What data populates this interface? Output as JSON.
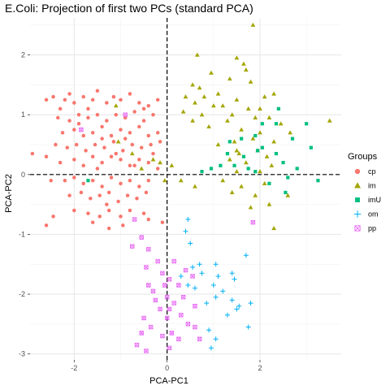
{
  "chart_data": {
    "type": "scatter",
    "title": "E.Coli: Projection of first two PCs (standard PCA)",
    "xlabel": "PCA-PC1",
    "ylabel": "PCA-PC2",
    "xlim": [
      -2.95,
      3.75
    ],
    "ylim": [
      -3.1,
      2.62
    ],
    "x_ticks": [
      -2,
      0,
      2
    ],
    "y_ticks": [
      -3,
      -2,
      -1,
      0,
      1,
      2
    ],
    "grid": true,
    "reference_lines": [
      {
        "axis": "x",
        "value": 0,
        "style": "dashed"
      },
      {
        "axis": "y",
        "value": 0,
        "style": "dashed"
      }
    ],
    "legend": {
      "title": "Groups",
      "position": "right"
    },
    "series": [
      {
        "name": "cp",
        "color": "#F8766D",
        "shape": "circle",
        "points": [
          [
            -2.6,
            1.25
          ],
          [
            -2.45,
            1.3
          ],
          [
            -2.3,
            1.1
          ],
          [
            -2.2,
            1.25
          ],
          [
            -2.1,
            1.35
          ],
          [
            -2.0,
            1.2
          ],
          [
            -1.8,
            1.3
          ],
          [
            -1.6,
            1.25
          ],
          [
            -1.5,
            1.4
          ],
          [
            -1.3,
            1.2
          ],
          [
            -1.15,
            1.3
          ],
          [
            -1.0,
            1.25
          ],
          [
            -0.8,
            1.35
          ],
          [
            -0.6,
            1.2
          ],
          [
            -0.4,
            1.15
          ],
          [
            -0.2,
            1.25
          ],
          [
            -2.35,
            0.95
          ],
          [
            -2.1,
            0.9
          ],
          [
            -1.9,
            1.0
          ],
          [
            -1.7,
            0.95
          ],
          [
            -1.5,
            1.0
          ],
          [
            -1.3,
            0.9
          ],
          [
            -1.1,
            1.0
          ],
          [
            -0.9,
            0.95
          ],
          [
            -0.7,
            1.05
          ],
          [
            -0.5,
            0.9
          ],
          [
            -0.3,
            1.0
          ],
          [
            -2.25,
            0.7
          ],
          [
            -2.0,
            0.75
          ],
          [
            -1.8,
            0.65
          ],
          [
            -1.6,
            0.7
          ],
          [
            -1.4,
            0.8
          ],
          [
            -1.2,
            0.65
          ],
          [
            -1.0,
            0.75
          ],
          [
            -0.8,
            0.7
          ],
          [
            -0.6,
            0.8
          ],
          [
            -0.4,
            0.65
          ],
          [
            -0.2,
            0.7
          ],
          [
            -2.15,
            0.45
          ],
          [
            -1.95,
            0.5
          ],
          [
            -1.75,
            0.4
          ],
          [
            -1.55,
            0.5
          ],
          [
            -1.35,
            0.45
          ],
          [
            -1.15,
            0.55
          ],
          [
            -0.95,
            0.4
          ],
          [
            -0.75,
            0.5
          ],
          [
            -0.55,
            0.45
          ],
          [
            -0.35,
            0.5
          ],
          [
            -0.15,
            0.55
          ],
          [
            -2.9,
            0.35
          ],
          [
            -2.6,
            0.3
          ],
          [
            -2.3,
            0.2
          ],
          [
            -2.0,
            0.25
          ],
          [
            -1.8,
            0.15
          ],
          [
            -1.6,
            0.3
          ],
          [
            -1.4,
            0.2
          ],
          [
            -1.2,
            0.3
          ],
          [
            -1.0,
            0.25
          ],
          [
            -0.8,
            0.15
          ],
          [
            -0.6,
            0.25
          ],
          [
            -0.4,
            0.2
          ],
          [
            -0.2,
            0.1
          ],
          [
            -2.2,
            -0.1
          ],
          [
            -2.0,
            -0.05
          ],
          [
            -1.8,
            -0.15
          ],
          [
            -1.6,
            -0.1
          ],
          [
            -1.4,
            -0.2
          ],
          [
            -1.2,
            -0.05
          ],
          [
            -1.0,
            -0.15
          ],
          [
            -0.8,
            -0.1
          ],
          [
            -0.6,
            -0.2
          ],
          [
            -0.4,
            -0.1
          ],
          [
            -2.1,
            -0.35
          ],
          [
            -1.85,
            -0.3
          ],
          [
            -1.65,
            -0.4
          ],
          [
            -1.45,
            -0.35
          ],
          [
            -1.25,
            -0.3
          ],
          [
            -1.05,
            -0.45
          ],
          [
            -0.85,
            -0.35
          ],
          [
            -0.65,
            -0.4
          ],
          [
            -0.45,
            -0.3
          ],
          [
            -2.0,
            -0.6
          ],
          [
            -1.7,
            -0.65
          ],
          [
            -1.45,
            -0.7
          ],
          [
            -1.25,
            -0.6
          ],
          [
            -1.0,
            -0.7
          ],
          [
            -0.8,
            -0.6
          ],
          [
            -0.5,
            -0.65
          ],
          [
            -2.45,
            -0.7
          ],
          [
            -2.6,
            -0.85
          ],
          [
            -1.6,
            -0.8
          ],
          [
            -1.25,
            -0.9
          ],
          [
            -0.95,
            -0.85
          ],
          [
            -0.4,
            -0.75
          ],
          [
            -0.1,
            -0.8
          ],
          [
            -1.4,
            0.6
          ],
          [
            -1.1,
            0.35
          ],
          [
            -0.7,
            0.15
          ],
          [
            -0.3,
            0.35
          ],
          [
            -1.9,
            0.85
          ],
          [
            -1.7,
            1.1
          ],
          [
            -0.5,
            1.1
          ],
          [
            -1.3,
            -0.5
          ],
          [
            -1.5,
            0.1
          ],
          [
            -0.9,
            0.6
          ],
          [
            -2.4,
            0.5
          ],
          [
            -2.5,
            -0.1
          ]
        ]
      },
      {
        "name": "im",
        "color": "#A3A500",
        "shape": "triangle",
        "points": [
          [
            1.85,
            2.5
          ],
          [
            0.65,
            2.0
          ],
          [
            1.5,
            1.95
          ],
          [
            1.65,
            1.85
          ],
          [
            1.7,
            1.75
          ],
          [
            0.95,
            1.7
          ],
          [
            1.35,
            1.6
          ],
          [
            1.8,
            1.55
          ],
          [
            0.55,
            1.5
          ],
          [
            0.7,
            1.45
          ],
          [
            1.1,
            1.35
          ],
          [
            2.1,
            1.3
          ],
          [
            0.8,
            1.3
          ],
          [
            1.5,
            1.25
          ],
          [
            2.3,
            1.35
          ],
          [
            0.4,
            1.3
          ],
          [
            0.6,
            1.2
          ],
          [
            1.0,
            1.15
          ],
          [
            1.2,
            1.15
          ],
          [
            1.75,
            1.1
          ],
          [
            2.0,
            1.1
          ],
          [
            0.35,
            1.05
          ],
          [
            0.75,
            1.0
          ],
          [
            1.4,
            1.0
          ],
          [
            1.9,
            0.95
          ],
          [
            2.2,
            0.95
          ],
          [
            0.55,
            0.9
          ],
          [
            1.3,
            0.9
          ],
          [
            2.45,
            0.85
          ],
          [
            0.9,
            0.8
          ],
          [
            1.6,
            0.75
          ],
          [
            2.0,
            0.7
          ],
          [
            2.65,
            0.7
          ],
          [
            3.5,
            0.9
          ],
          [
            1.85,
            0.6
          ],
          [
            1.45,
            0.55
          ],
          [
            2.3,
            0.55
          ],
          [
            1.1,
            0.5
          ],
          [
            1.55,
            0.35
          ],
          [
            2.15,
            0.3
          ],
          [
            1.35,
            0.25
          ],
          [
            1.7,
            0.2
          ],
          [
            2.25,
            0.15
          ],
          [
            1.5,
            0.05
          ],
          [
            2.0,
            0.05
          ],
          [
            0.3,
            -0.1
          ],
          [
            0.6,
            -0.2
          ],
          [
            1.2,
            -0.1
          ],
          [
            1.6,
            -0.2
          ],
          [
            2.1,
            -0.15
          ],
          [
            1.4,
            -0.3
          ],
          [
            1.9,
            -0.35
          ],
          [
            2.6,
            -0.35
          ],
          [
            2.2,
            -0.5
          ],
          [
            1.8,
            -0.55
          ],
          [
            2.3,
            -0.9
          ],
          [
            1.5,
            0.4
          ],
          [
            -1.1,
            1.15
          ],
          [
            -1.05,
            0.55
          ],
          [
            -0.75,
            0.35
          ],
          [
            -0.15,
            0.2
          ],
          [
            -0.55,
            0.1
          ],
          [
            -0.05,
            -0.1
          ],
          [
            -0.3,
            0.25
          ],
          [
            0.1,
            0.15
          ],
          [
            1.95,
            0.4
          ]
        ]
      },
      {
        "name": "imU",
        "color": "#00BF7D",
        "shape": "square",
        "points": [
          [
            2.4,
            1.1
          ],
          [
            2.35,
            0.85
          ],
          [
            3.0,
            0.85
          ],
          [
            1.9,
            0.65
          ],
          [
            2.7,
            0.6
          ],
          [
            2.05,
            0.45
          ],
          [
            3.1,
            0.45
          ],
          [
            1.35,
            0.55
          ],
          [
            1.65,
            0.3
          ],
          [
            2.5,
            0.2
          ],
          [
            2.8,
            0.1
          ],
          [
            1.45,
            0.15
          ],
          [
            1.15,
            0.15
          ],
          [
            1.9,
            0.05
          ],
          [
            2.6,
            -0.05
          ],
          [
            2.2,
            -0.15
          ],
          [
            1.95,
            0.4
          ],
          [
            0.95,
            0.1
          ],
          [
            3.25,
            -0.1
          ],
          [
            2.55,
            -0.3
          ],
          [
            1.75,
            0.1
          ],
          [
            2.35,
            0.35
          ],
          [
            1.6,
            0.6
          ],
          [
            0.75,
            0.05
          ],
          [
            -1.7,
            -0.1
          ],
          [
            2.05,
            0.85
          ],
          [
            1.3,
            0.35
          ]
        ]
      },
      {
        "name": "om",
        "color": "#00B0F6",
        "shape": "plus",
        "points": [
          [
            0.45,
            -0.75
          ],
          [
            0.5,
            -1.15
          ],
          [
            0.7,
            -1.5
          ],
          [
            0.3,
            -1.7
          ],
          [
            0.45,
            -1.85
          ],
          [
            0.6,
            -1.9
          ],
          [
            0.75,
            -1.65
          ],
          [
            1.0,
            -1.85
          ],
          [
            1.1,
            -1.7
          ],
          [
            1.05,
            -2.05
          ],
          [
            0.85,
            -2.15
          ],
          [
            1.2,
            -1.95
          ],
          [
            1.4,
            -2.1
          ],
          [
            1.5,
            -2.25
          ],
          [
            1.3,
            -2.35
          ],
          [
            1.45,
            -1.75
          ],
          [
            1.05,
            -1.5
          ],
          [
            1.7,
            -1.35
          ],
          [
            1.55,
            -2.2
          ],
          [
            1.8,
            -2.15
          ],
          [
            1.75,
            -2.55
          ],
          [
            0.9,
            -2.6
          ],
          [
            1.05,
            -2.75
          ],
          [
            0.95,
            -2.9
          ],
          [
            1.4,
            -1.65
          ],
          [
            0.4,
            -0.95
          ],
          [
            0.55,
            -1.55
          ]
        ]
      },
      {
        "name": "pp",
        "color": "#E76BF3",
        "shape": "square-cross",
        "points": [
          [
            -0.7,
            -0.75
          ],
          [
            -0.55,
            -1.05
          ],
          [
            -0.4,
            -1.25
          ],
          [
            -0.75,
            -1.2
          ],
          [
            -0.2,
            -1.45
          ],
          [
            -0.45,
            -1.55
          ],
          [
            -0.1,
            -1.65
          ],
          [
            0.15,
            -1.45
          ],
          [
            0.05,
            -1.75
          ],
          [
            0.25,
            -1.85
          ],
          [
            0.4,
            -1.6
          ],
          [
            0.55,
            -1.7
          ],
          [
            -0.3,
            -1.95
          ],
          [
            0.0,
            -2.05
          ],
          [
            0.15,
            -2.15
          ],
          [
            -0.15,
            -2.25
          ],
          [
            0.3,
            -2.35
          ],
          [
            0.0,
            -2.4
          ],
          [
            0.45,
            -2.5
          ],
          [
            0.1,
            -2.65
          ],
          [
            -0.35,
            -2.55
          ],
          [
            -0.1,
            -2.7
          ],
          [
            0.25,
            -2.75
          ],
          [
            -0.55,
            -2.65
          ],
          [
            -0.65,
            -2.85
          ],
          [
            -0.45,
            -2.95
          ],
          [
            0.05,
            -2.9
          ],
          [
            0.6,
            -2.55
          ],
          [
            -0.5,
            -2.4
          ],
          [
            -0.25,
            -2.1
          ],
          [
            0.35,
            -2.05
          ],
          [
            0.6,
            -2.2
          ],
          [
            -0.05,
            -1.85
          ],
          [
            0.05,
            -2.25
          ],
          [
            -0.4,
            -1.85
          ],
          [
            0.7,
            -2.75
          ],
          [
            -1.85,
            0.75
          ],
          [
            -0.9,
            1.0
          ],
          [
            1.85,
            -0.8
          ]
        ]
      }
    ]
  }
}
